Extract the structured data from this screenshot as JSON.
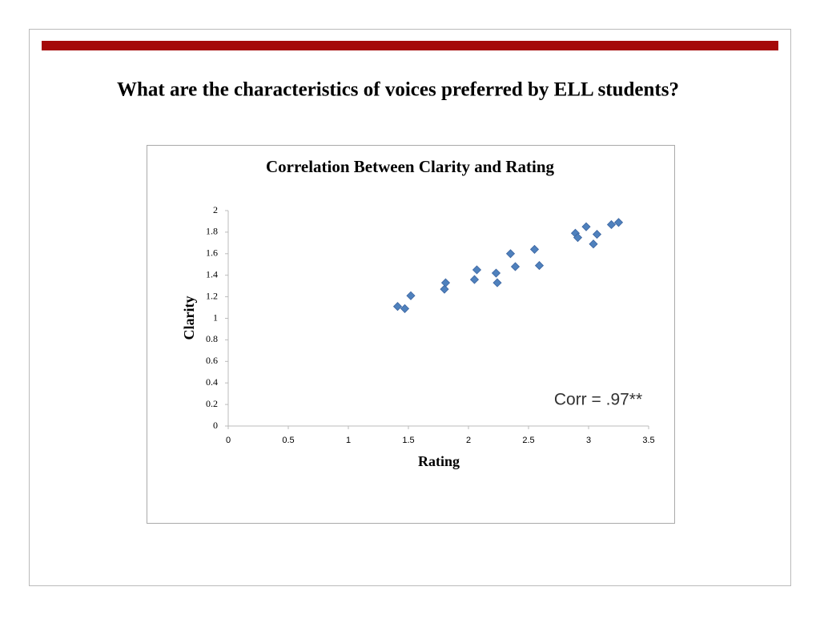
{
  "slide": {
    "title": "What are the characteristics of voices preferred by ELL students?"
  },
  "chart_data": {
    "type": "scatter",
    "title": "Correlation Between Clarity and Rating",
    "x_label": "Rating",
    "y_label": "Clarity",
    "annotation": "Corr = .97**",
    "x": [
      1.41,
      1.47,
      1.52,
      1.8,
      1.81,
      2.05,
      2.07,
      2.23,
      2.24,
      2.35,
      2.39,
      2.55,
      2.59,
      2.89,
      2.91,
      2.98,
      3.04,
      3.07,
      3.19,
      3.25
    ],
    "values": [
      1.11,
      1.09,
      1.21,
      1.27,
      1.33,
      1.36,
      1.45,
      1.42,
      1.33,
      1.6,
      1.48,
      1.64,
      1.49,
      1.79,
      1.75,
      1.85,
      1.69,
      1.78,
      1.87,
      1.89
    ],
    "color": "#4f81bd",
    "xlim": [
      0,
      3.5
    ],
    "ylim": [
      0,
      2
    ],
    "xticks": [
      0,
      0.5,
      1,
      1.5,
      2,
      2.5,
      3,
      3.5
    ],
    "yticks": [
      0,
      0.2,
      0.4,
      0.6,
      0.8,
      1,
      1.2,
      1.4,
      1.6,
      1.8,
      2
    ],
    "grid": false
  }
}
